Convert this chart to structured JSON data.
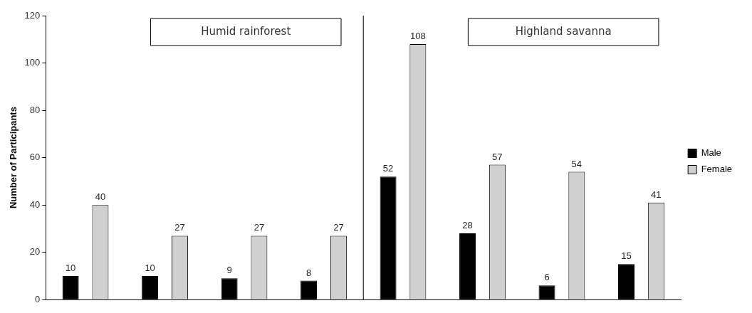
{
  "chart_data": {
    "type": "bar",
    "ylabel": "Number of Participants",
    "categories": [
      null,
      null,
      null,
      null,
      null,
      null,
      null,
      null
    ],
    "series": [
      {
        "name": "Male",
        "color": "#000000",
        "values": [
          10,
          10,
          9,
          8,
          52,
          28,
          6,
          15
        ]
      },
      {
        "name": "Female",
        "color": "#d0d0d0",
        "values": [
          40,
          27,
          27,
          27,
          108,
          57,
          54,
          41
        ]
      }
    ],
    "ylim": [
      0,
      120
    ],
    "yticks": [
      0,
      20,
      40,
      60,
      80,
      100,
      120
    ],
    "grid": false,
    "legend": "right",
    "tick_labels": "y",
    "data_labels": true,
    "annotations": [
      "Humid rainforest",
      "Highland savanna"
    ]
  }
}
